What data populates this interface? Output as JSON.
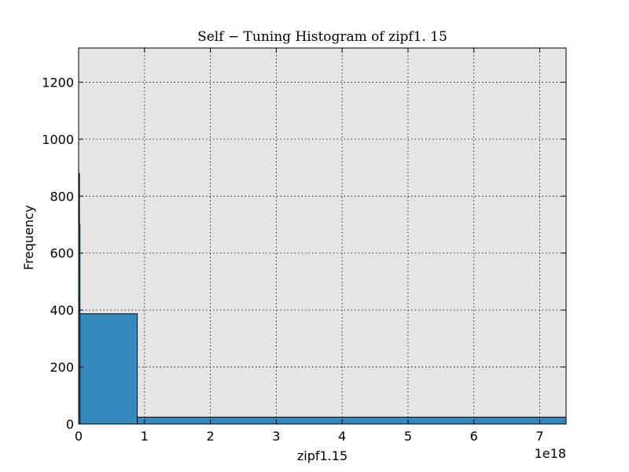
{
  "chart_data": {
    "type": "bar",
    "title": "Self − Tuning Histogram of zipf1. 15",
    "xlabel": "zipf1.15",
    "ylabel": "Frequency",
    "x_offset_label": "1e18",
    "xlim": [
      0,
      7.4
    ],
    "ylim": [
      0,
      1320
    ],
    "x_ticks": [
      0,
      1,
      2,
      3,
      4,
      5,
      6,
      7
    ],
    "x_tick_labels": [
      "0",
      "1",
      "2",
      "3",
      "4",
      "5",
      "6",
      "7"
    ],
    "y_ticks": [
      0,
      200,
      400,
      600,
      800,
      1000,
      1200
    ],
    "y_tick_labels": [
      "0",
      "200",
      "400",
      "600",
      "800",
      "1000",
      "1200"
    ],
    "grid": true,
    "bar_color": "#348abd",
    "plot_background": "#e5e5e5",
    "bins": [
      {
        "x0": 0.0,
        "x1": 0.89,
        "count": 387
      },
      {
        "x0": 0.89,
        "x1": 7.4,
        "count": 24
      }
    ],
    "spikes": [
      {
        "x0": 0.0,
        "x1": 0.012,
        "count": 880
      },
      {
        "x0": 0.0,
        "x1": 0.02,
        "count": 700
      }
    ]
  }
}
